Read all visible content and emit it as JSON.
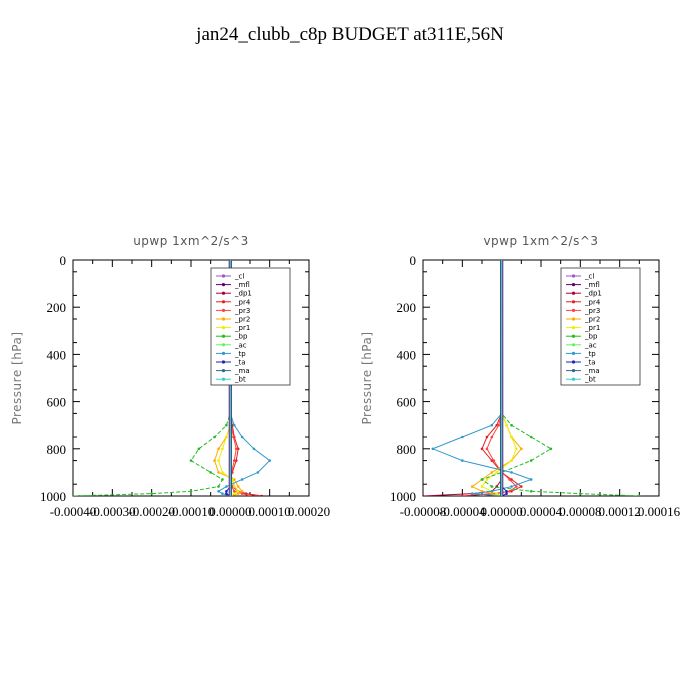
{
  "title": "jan24_clubb_c8p  BUDGET at311E,56N",
  "chart_data": [
    {
      "type": "line",
      "title": "upwp   1xm^2/s^3",
      "ylabel": "Pressure [hPa]",
      "xlabel": "",
      "xlim": [
        -0.0004,
        0.0002
      ],
      "ylim": [
        1000,
        0
      ],
      "xticks": [
        -0.0004,
        -0.0003,
        -0.0002,
        -0.0001,
        0.0,
        0.0001,
        0.0002
      ],
      "xtick_labels": [
        "-0.00040",
        "-0.00030",
        "-0.00020",
        "-0.00010",
        "0.00000",
        "0.00010",
        "0.00020"
      ],
      "yticks": [
        0,
        200,
        400,
        600,
        800,
        1000
      ],
      "ytick_labels": [
        "0",
        "200",
        "400",
        "600",
        "800",
        "1000"
      ],
      "legend_position": "top-right",
      "y": [
        0,
        100,
        200,
        300,
        400,
        500,
        600,
        650,
        700,
        750,
        800,
        850,
        900,
        930,
        960,
        980,
        990,
        1000
      ],
      "series": [
        {
          "name": "_cl",
          "color": "#9955cc",
          "values": [
            0,
            0,
            0,
            0,
            0,
            0,
            0,
            0,
            0,
            0,
            0,
            0,
            0,
            0,
            0,
            0,
            0,
            0
          ]
        },
        {
          "name": "_mfl",
          "color": "#660066",
          "values": [
            0,
            0,
            0,
            0,
            0,
            0,
            0,
            0,
            0,
            0,
            0,
            0,
            0,
            0,
            0,
            0,
            0,
            0
          ]
        },
        {
          "name": "_dp1",
          "color": "#aa0033",
          "values": [
            0,
            0,
            0,
            0,
            0,
            0,
            0,
            0,
            0,
            0,
            0,
            0,
            0,
            5e-06,
            1e-05,
            2e-05,
            4e-05,
            8e-05
          ]
        },
        {
          "name": "_pr4",
          "color": "#dd2222",
          "values": [
            0,
            0,
            0,
            0,
            0,
            0,
            0,
            0,
            5e-06,
            1e-05,
            2e-05,
            1.5e-05,
            5e-06,
            0,
            5e-06,
            2e-05,
            4e-05,
            7e-05
          ]
        },
        {
          "name": "_pr3",
          "color": "#ff4444",
          "values": [
            0,
            0,
            0,
            0,
            0,
            0,
            0,
            0,
            2e-06,
            8e-06,
            1.5e-05,
            1e-05,
            3e-06,
            0,
            3e-06,
            1e-05,
            3e-05,
            5e-05
          ]
        },
        {
          "name": "_pr2",
          "color": "#ffaa00",
          "values": [
            0,
            0,
            0,
            0,
            0,
            0,
            0,
            0,
            0,
            -1e-05,
            -3e-05,
            -4e-05,
            -3e-05,
            1e-05,
            2e-05,
            3e-05,
            2e-05,
            0
          ]
        },
        {
          "name": "_pr1",
          "color": "#eeee00",
          "values": [
            0,
            0,
            0,
            0,
            0,
            0,
            0,
            0,
            0,
            -1e-05,
            -2e-05,
            -3e-05,
            -2e-05,
            5e-06,
            1e-05,
            2e-05,
            1e-05,
            0
          ]
        },
        {
          "name": "_bp",
          "color": "#22bb22",
          "values": [
            0,
            0,
            0,
            0,
            0,
            0,
            0,
            0,
            -1e-05,
            -4e-05,
            -8e-05,
            -0.0001,
            -5e-05,
            -2e-05,
            -3e-05,
            -0.0001,
            -0.0002,
            -0.0004
          ]
        },
        {
          "name": "_ac",
          "color": "#66ee66",
          "values": [
            0,
            0,
            0,
            0,
            0,
            0,
            0,
            0,
            0,
            0,
            0,
            0,
            0,
            0,
            0,
            0,
            0,
            0
          ]
        },
        {
          "name": "_tp",
          "color": "#3399cc",
          "values": [
            0,
            0,
            0,
            0,
            0,
            0,
            0,
            0,
            1e-05,
            3e-05,
            6e-05,
            0.0001,
            7e-05,
            3e-05,
            -1e-05,
            -3e-05,
            -2e-05,
            0
          ]
        },
        {
          "name": "_ta",
          "color": "#2222bb",
          "values": [
            0,
            0,
            0,
            0,
            0,
            0,
            0,
            0,
            0,
            0,
            0,
            0,
            0,
            0,
            0,
            -1e-05,
            -1e-05,
            0
          ]
        },
        {
          "name": "_ma",
          "color": "#336699",
          "values": [
            0,
            0,
            0,
            0,
            0,
            0,
            0,
            0,
            0,
            0,
            0,
            0,
            0,
            0,
            0,
            0,
            0,
            0
          ]
        },
        {
          "name": "_bt",
          "color": "#33cccc",
          "values": [
            0,
            0,
            0,
            0,
            0,
            0,
            0,
            0,
            0,
            0,
            0,
            0,
            0,
            0,
            0,
            0,
            0,
            0
          ]
        }
      ]
    },
    {
      "type": "line",
      "title": "vpwp   1xm^2/s^3",
      "ylabel": "Pressure [hPa]",
      "xlabel": "",
      "xlim": [
        -8e-05,
        0.00016
      ],
      "ylim": [
        1000,
        0
      ],
      "xticks": [
        -8e-05,
        -4e-05,
        0.0,
        4e-05,
        8e-05,
        0.00012,
        0.00016
      ],
      "xtick_labels": [
        "-0.00008",
        "-0.00004",
        "0.00000",
        "0.00004",
        "0.00008",
        "0.00012",
        "0.00016"
      ],
      "yticks": [
        0,
        200,
        400,
        600,
        800,
        1000
      ],
      "ytick_labels": [
        "0",
        "200",
        "400",
        "600",
        "800",
        "1000"
      ],
      "legend_position": "top-right",
      "y": [
        0,
        100,
        200,
        300,
        400,
        500,
        600,
        650,
        700,
        750,
        800,
        850,
        900,
        930,
        960,
        980,
        990,
        1000
      ],
      "series": [
        {
          "name": "_cl",
          "color": "#9955cc",
          "values": [
            0,
            0,
            0,
            0,
            0,
            0,
            0,
            0,
            0,
            0,
            0,
            0,
            0,
            0,
            0,
            0,
            0,
            0
          ]
        },
        {
          "name": "_mfl",
          "color": "#660066",
          "values": [
            0,
            0,
            0,
            0,
            0,
            0,
            0,
            0,
            0,
            0,
            0,
            0,
            0,
            0,
            0,
            0,
            0,
            0
          ]
        },
        {
          "name": "_dp1",
          "color": "#aa0033",
          "values": [
            0,
            0,
            0,
            0,
            0,
            0,
            0,
            0,
            0,
            0,
            0,
            0,
            0,
            0,
            -5e-06,
            -1e-05,
            -3e-05,
            -8e-05
          ]
        },
        {
          "name": "_pr4",
          "color": "#dd2222",
          "values": [
            0,
            0,
            0,
            0,
            0,
            0,
            0,
            0,
            -5e-06,
            -1.5e-05,
            -2e-05,
            -1e-05,
            0,
            1e-05,
            2e-05,
            1e-05,
            -1e-05,
            -4e-05
          ]
        },
        {
          "name": "_pr3",
          "color": "#ff4444",
          "values": [
            0,
            0,
            0,
            0,
            0,
            0,
            0,
            0,
            -3e-06,
            -1e-05,
            -1.5e-05,
            -8e-06,
            0,
            8e-06,
            1.5e-05,
            8e-06,
            -5e-06,
            -2e-05
          ]
        },
        {
          "name": "_pr2",
          "color": "#ffaa00",
          "values": [
            0,
            0,
            0,
            0,
            0,
            0,
            0,
            0,
            5e-06,
            1e-05,
            2e-05,
            1e-05,
            -1e-05,
            -2e-05,
            -3e-05,
            -2e-05,
            -1e-05,
            0
          ]
        },
        {
          "name": "_pr1",
          "color": "#eeee00",
          "values": [
            0,
            0,
            0,
            0,
            0,
            0,
            0,
            0,
            5e-06,
            1e-05,
            1.5e-05,
            1e-05,
            -5e-06,
            -1.5e-05,
            -2e-05,
            -1e-05,
            -5e-06,
            0
          ]
        },
        {
          "name": "_bp",
          "color": "#22bb22",
          "values": [
            0,
            0,
            0,
            0,
            0,
            0,
            0,
            0,
            1e-05,
            3e-05,
            5e-05,
            3e-05,
            0,
            -2e-05,
            -1e-05,
            3e-05,
            8e-05,
            0.00014
          ]
        },
        {
          "name": "_ac",
          "color": "#66ee66",
          "values": [
            0,
            0,
            0,
            0,
            0,
            0,
            0,
            0,
            0,
            0,
            0,
            0,
            0,
            0,
            0,
            0,
            0,
            0
          ]
        },
        {
          "name": "_tp",
          "color": "#3399cc",
          "values": [
            0,
            0,
            0,
            0,
            0,
            0,
            0,
            0,
            -1e-05,
            -4e-05,
            -7e-05,
            -4e-05,
            1e-05,
            3e-05,
            1e-05,
            -1e-05,
            -3e-05,
            0
          ]
        },
        {
          "name": "_ta",
          "color": "#2222bb",
          "values": [
            0,
            0,
            0,
            0,
            0,
            0,
            0,
            0,
            0,
            0,
            0,
            0,
            0,
            0,
            0,
            5e-06,
            5e-06,
            0
          ]
        },
        {
          "name": "_ma",
          "color": "#336699",
          "values": [
            0,
            0,
            0,
            0,
            0,
            0,
            0,
            0,
            0,
            0,
            0,
            0,
            0,
            0,
            0,
            0,
            0,
            0
          ]
        },
        {
          "name": "_bt",
          "color": "#33cccc",
          "values": [
            0,
            0,
            0,
            0,
            0,
            0,
            0,
            0,
            0,
            0,
            0,
            0,
            0,
            0,
            0,
            0,
            0,
            0
          ]
        }
      ]
    }
  ]
}
